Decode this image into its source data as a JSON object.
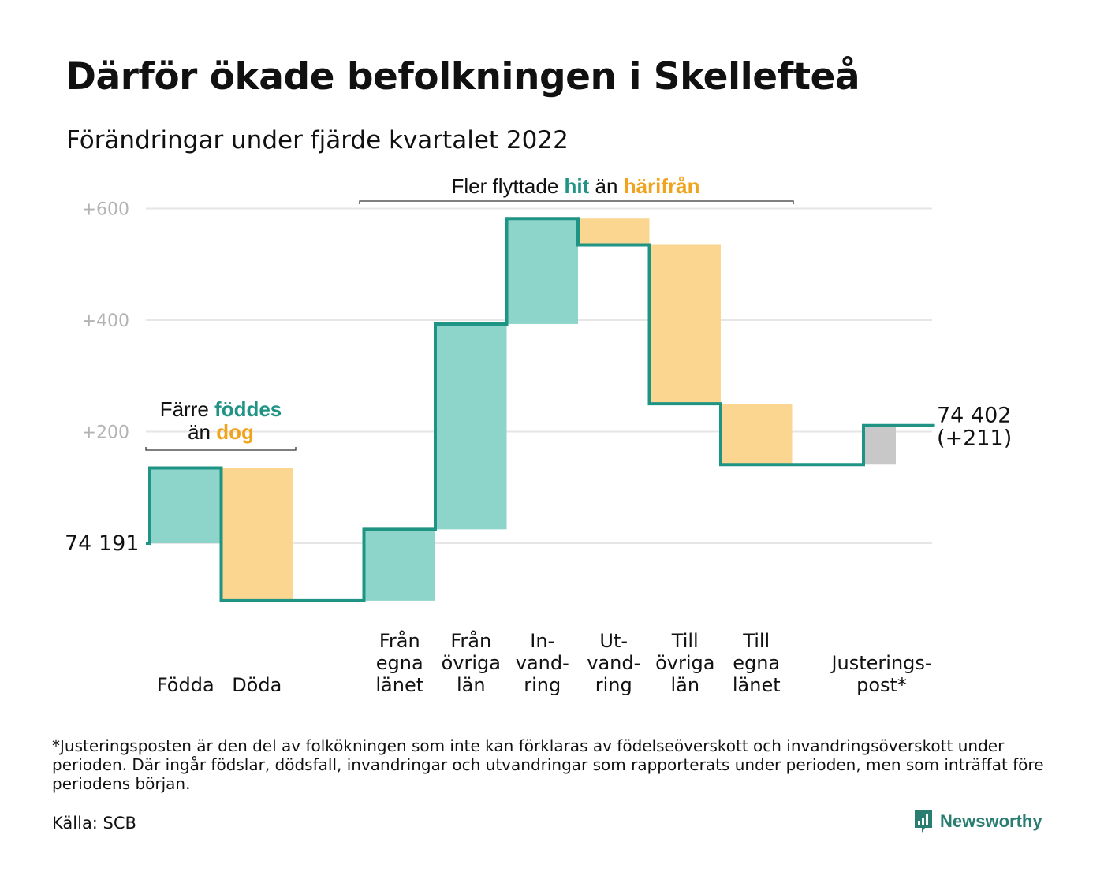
{
  "title": "Därför ökade befolkningen i Skellefteå",
  "subtitle": "Förändringar under fjärde kvartalet 2022",
  "colors": {
    "increase": "#8dd5cb",
    "decrease": "#fbd690",
    "adjustment": "#c8c8c8",
    "line": "#1f9485",
    "grid": "#e6e6e6",
    "highlight_green": "#1f9485",
    "highlight_orange": "#f0a31c"
  },
  "chart_data": {
    "type": "waterfall",
    "start_value": 74191,
    "start_label": "74 191",
    "end_label_lines": [
      "74 402",
      "(+211)"
    ],
    "y_ticks": [
      {
        "value": 200,
        "label": "+200"
      },
      {
        "value": 400,
        "label": "+400"
      },
      {
        "value": 600,
        "label": "+600"
      }
    ],
    "y_relative_range": [
      -120,
      620
    ],
    "grid": true,
    "steps": [
      {
        "label_lines": [
          "Födda"
        ],
        "from": 0,
        "to": 135,
        "kind": "increase"
      },
      {
        "label_lines": [
          "Döda"
        ],
        "from": 135,
        "to": -103,
        "kind": "decrease"
      },
      {
        "label_lines": [],
        "from": -103,
        "to": -103,
        "kind": "gap"
      },
      {
        "label_lines": [
          "Från",
          "egna",
          "länet"
        ],
        "from": -103,
        "to": 25,
        "kind": "increase"
      },
      {
        "label_lines": [
          "Från",
          "övriga",
          "län"
        ],
        "from": 25,
        "to": 393,
        "kind": "increase"
      },
      {
        "label_lines": [
          "In-",
          "vand-",
          "ring"
        ],
        "from": 393,
        "to": 582,
        "kind": "increase"
      },
      {
        "label_lines": [
          "Ut-",
          "vand-",
          "ring"
        ],
        "from": 582,
        "to": 535,
        "kind": "decrease"
      },
      {
        "label_lines": [
          "Till",
          "övriga",
          "län"
        ],
        "from": 535,
        "to": 250,
        "kind": "decrease"
      },
      {
        "label_lines": [
          "Till",
          "egna",
          "länet"
        ],
        "from": 250,
        "to": 141,
        "kind": "decrease"
      },
      {
        "label_lines": [],
        "from": 141,
        "to": 141,
        "kind": "gap"
      },
      {
        "label_lines": [
          "Justerings-",
          "post*"
        ],
        "from": 141,
        "to": 211,
        "kind": "adjustment"
      }
    ],
    "annotations": [
      {
        "parts": [
          [
            "Färre ",
            "plain"
          ],
          [
            "föddes",
            "green"
          ]
        ],
        "parts2": [
          [
            "än ",
            "plain"
          ],
          [
            "dog",
            "orange"
          ]
        ]
      },
      {
        "parts": [
          [
            "Fler flyttade ",
            "plain"
          ],
          [
            "hit",
            "green"
          ],
          [
            " än ",
            "plain"
          ],
          [
            "härifrån",
            "orange"
          ]
        ]
      }
    ]
  },
  "footnote": "*Justeringsposten är den del av folkökningen som inte kan förklaras av födelseöverskott och invandringsöverskott under perioden. Där ingår födslar, dödsfall, invandringar och utvandringar som rapporterats under perioden, men som inträffat före periodens början.",
  "source": "Källa: SCB",
  "logo": {
    "name": "Newsworthy",
    "icon": "chart-bubble-icon"
  }
}
